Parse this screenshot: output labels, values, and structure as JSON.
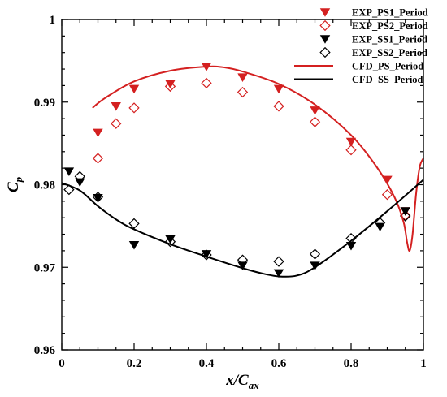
{
  "chart_data": {
    "type": "scatter",
    "xlabel": "x/C",
    "xlabel_sub": "ax",
    "ylabel": "C",
    "ylabel_sub": "p",
    "xlim": [
      0,
      1
    ],
    "ylim": [
      0.96,
      1.0
    ],
    "xticks": [
      {
        "value": 0,
        "label": "0"
      },
      {
        "value": 0.2,
        "label": "0.2"
      },
      {
        "value": 0.4,
        "label": "0.4"
      },
      {
        "value": 0.6,
        "label": "0.6"
      },
      {
        "value": 0.8,
        "label": "0.8"
      },
      {
        "value": 1,
        "label": "1"
      }
    ],
    "yticks": [
      {
        "value": 0.96,
        "label": "0.96"
      },
      {
        "value": 0.97,
        "label": "0.97"
      },
      {
        "value": 0.98,
        "label": "0.98"
      },
      {
        "value": 0.99,
        "label": "0.99"
      },
      {
        "value": 1.0,
        "label": "1"
      }
    ],
    "grid": false,
    "legend_position": "top-right",
    "series": [
      {
        "name": "EXP_PS1_Period",
        "kind": "marker",
        "marker": "triangle-down-filled",
        "color": "#d42020",
        "points": [
          [
            0.1,
            0.9863
          ],
          [
            0.15,
            0.9895
          ],
          [
            0.2,
            0.9916
          ],
          [
            0.3,
            0.9922
          ],
          [
            0.4,
            0.9943
          ],
          [
            0.5,
            0.993
          ],
          [
            0.6,
            0.9916
          ],
          [
            0.7,
            0.989
          ],
          [
            0.8,
            0.9852
          ],
          [
            0.9,
            0.9806
          ],
          [
            0.95,
            0.9768
          ]
        ]
      },
      {
        "name": "EXP_PS2_Period",
        "kind": "marker",
        "marker": "diamond-open",
        "color": "#d42020",
        "points": [
          [
            0.1,
            0.9832
          ],
          [
            0.15,
            0.9874
          ],
          [
            0.2,
            0.9893
          ],
          [
            0.3,
            0.9919
          ],
          [
            0.4,
            0.9923
          ],
          [
            0.5,
            0.9912
          ],
          [
            0.6,
            0.9895
          ],
          [
            0.7,
            0.9876
          ],
          [
            0.8,
            0.9842
          ],
          [
            0.9,
            0.9788
          ],
          [
            0.95,
            0.9763
          ]
        ]
      },
      {
        "name": "EXP_SS1_Period",
        "kind": "marker",
        "marker": "triangle-down-filled",
        "color": "#000000",
        "points": [
          [
            0.02,
            0.9816
          ],
          [
            0.05,
            0.9803
          ],
          [
            0.1,
            0.9784
          ],
          [
            0.2,
            0.9727
          ],
          [
            0.3,
            0.9734
          ],
          [
            0.4,
            0.9716
          ],
          [
            0.5,
            0.9702
          ],
          [
            0.6,
            0.9693
          ],
          [
            0.7,
            0.9702
          ],
          [
            0.8,
            0.9726
          ],
          [
            0.88,
            0.9749
          ],
          [
            0.95,
            0.9768
          ]
        ]
      },
      {
        "name": "EXP_SS2_Period",
        "kind": "marker",
        "marker": "diamond-open",
        "color": "#000000",
        "points": [
          [
            0.02,
            0.9794
          ],
          [
            0.05,
            0.981
          ],
          [
            0.1,
            0.9785
          ],
          [
            0.2,
            0.9753
          ],
          [
            0.3,
            0.9731
          ],
          [
            0.4,
            0.9715
          ],
          [
            0.5,
            0.9709
          ],
          [
            0.6,
            0.9707
          ],
          [
            0.7,
            0.9716
          ],
          [
            0.8,
            0.9735
          ],
          [
            0.88,
            0.9754
          ],
          [
            0.95,
            0.9762
          ]
        ]
      },
      {
        "name": "CFD_PS_Period",
        "kind": "line",
        "color": "#d42020",
        "points": [
          [
            0.085,
            0.9893
          ],
          [
            0.12,
            0.9905
          ],
          [
            0.2,
            0.9925
          ],
          [
            0.3,
            0.9938
          ],
          [
            0.4,
            0.9943
          ],
          [
            0.45,
            0.9942
          ],
          [
            0.5,
            0.9937
          ],
          [
            0.6,
            0.9922
          ],
          [
            0.7,
            0.9897
          ],
          [
            0.8,
            0.986
          ],
          [
            0.87,
            0.9822
          ],
          [
            0.92,
            0.9785
          ],
          [
            0.945,
            0.9755
          ],
          [
            0.955,
            0.973
          ],
          [
            0.962,
            0.972
          ],
          [
            0.97,
            0.974
          ],
          [
            0.98,
            0.979
          ],
          [
            0.99,
            0.9822
          ],
          [
            1.0,
            0.9832
          ]
        ]
      },
      {
        "name": "CFD_SS_Period",
        "kind": "line",
        "color": "#000000",
        "points": [
          [
            0.0,
            0.9802
          ],
          [
            0.05,
            0.9793
          ],
          [
            0.1,
            0.9774
          ],
          [
            0.15,
            0.9758
          ],
          [
            0.2,
            0.9746
          ],
          [
            0.3,
            0.9728
          ],
          [
            0.4,
            0.9713
          ],
          [
            0.5,
            0.9699
          ],
          [
            0.55,
            0.9693
          ],
          [
            0.6,
            0.9689
          ],
          [
            0.65,
            0.969
          ],
          [
            0.7,
            0.97
          ],
          [
            0.8,
            0.9732
          ],
          [
            0.9,
            0.9768
          ],
          [
            1.0,
            0.9806
          ]
        ]
      }
    ]
  }
}
